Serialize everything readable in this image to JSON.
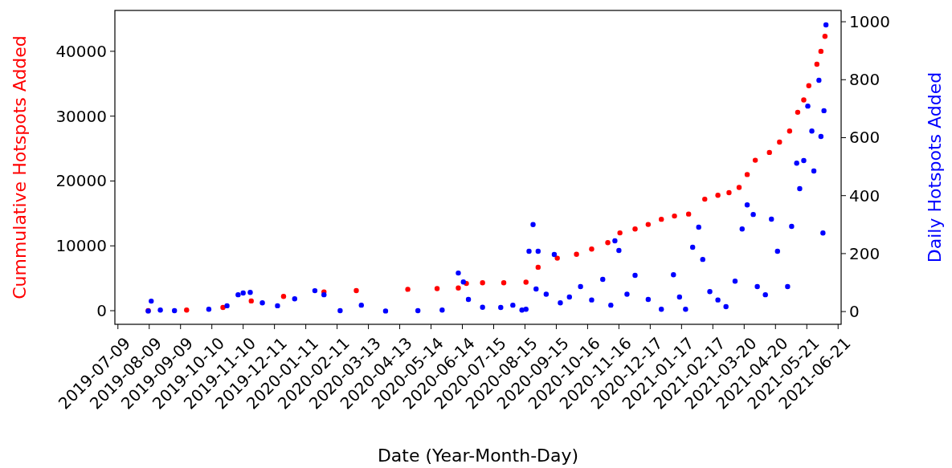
{
  "chart_data": {
    "type": "scatter",
    "xlabel": "Date (Year-Month-Day)",
    "ylabel": "Cummulative Hotspots Added",
    "y2label": "Daily Hotspots Added",
    "marker": "circle",
    "xlim": [
      "2019-07-06",
      "2021-06-24"
    ],
    "xticks": [
      "2019-07-09",
      "2019-08-09",
      "2019-09-09",
      "2019-10-10",
      "2019-11-10",
      "2019-12-11",
      "2020-01-11",
      "2020-02-11",
      "2020-03-13",
      "2020-04-13",
      "2020-05-14",
      "2020-06-14",
      "2020-07-15",
      "2020-08-15",
      "2020-09-15",
      "2020-10-16",
      "2020-11-16",
      "2020-12-17",
      "2021-01-17",
      "2021-02-17",
      "2021-03-20",
      "2021-04-20",
      "2021-05-21",
      "2021-06-21"
    ],
    "ylim": [
      -2100,
      46300
    ],
    "yticks": [
      0,
      10000,
      20000,
      30000,
      40000
    ],
    "y2lim": [
      -44,
      1039
    ],
    "y2ticks": [
      0,
      200,
      400,
      600,
      800,
      1000
    ],
    "series": [
      {
        "color": "#ff0000",
        "x": [
          "2019-08-08",
          "2019-09-15",
          "2019-10-21",
          "2019-11-18",
          "2019-12-20",
          "2020-01-29",
          "2020-03-01",
          "2020-04-21",
          "2020-05-20",
          "2020-06-10",
          "2020-06-18",
          "2020-07-04",
          "2020-07-25",
          "2020-08-16",
          "2020-08-28",
          "2020-09-16",
          "2020-10-05",
          "2020-10-20",
          "2020-11-05",
          "2020-11-17",
          "2020-12-02",
          "2020-12-15",
          "2020-12-28",
          "2021-01-10",
          "2021-01-24",
          "2021-02-09",
          "2021-02-22",
          "2021-03-05",
          "2021-03-15",
          "2021-03-23",
          "2021-03-31",
          "2021-04-14",
          "2021-04-24",
          "2021-05-04",
          "2021-05-12",
          "2021-05-18",
          "2021-05-23",
          "2021-05-31",
          "2021-06-04",
          "2021-06-08"
        ],
        "values": [
          0,
          100,
          500,
          1500,
          2200,
          2900,
          3100,
          3300,
          3400,
          3500,
          4200,
          4300,
          4300,
          4400,
          6700,
          8100,
          8700,
          9500,
          10500,
          12000,
          12600,
          13300,
          14100,
          14600,
          14900,
          17200,
          17800,
          18200,
          19000,
          21000,
          23200,
          24400,
          26000,
          27700,
          30600,
          32500,
          34700,
          38000,
          40000,
          42300
        ]
      },
      {
        "color": "#0000ff",
        "axis": "y2",
        "x": [
          "2019-08-08",
          "2019-08-11",
          "2019-08-20",
          "2019-09-03",
          "2019-10-07",
          "2019-10-25",
          "2019-11-05",
          "2019-11-10",
          "2019-11-17",
          "2019-11-29",
          "2019-12-14",
          "2019-12-31",
          "2020-01-20",
          "2020-01-29",
          "2020-02-14",
          "2020-03-06",
          "2020-03-30",
          "2020-05-01",
          "2020-05-25",
          "2020-06-10",
          "2020-06-15",
          "2020-06-20",
          "2020-07-04",
          "2020-07-22",
          "2020-08-03",
          "2020-08-12",
          "2020-08-16",
          "2020-08-19",
          "2020-08-23",
          "2020-08-26",
          "2020-08-28",
          "2020-09-05",
          "2020-09-13",
          "2020-09-19",
          "2020-09-28",
          "2020-10-09",
          "2020-10-20",
          "2020-10-31",
          "2020-11-08",
          "2020-11-12",
          "2020-11-16",
          "2020-11-24",
          "2020-12-02",
          "2020-12-15",
          "2020-12-28",
          "2021-01-09",
          "2021-01-15",
          "2021-01-21",
          "2021-01-28",
          "2021-02-03",
          "2021-02-07",
          "2021-02-14",
          "2021-02-22",
          "2021-03-02",
          "2021-03-11",
          "2021-03-18",
          "2021-03-23",
          "2021-03-29",
          "2021-04-02",
          "2021-04-10",
          "2021-04-16",
          "2021-04-22",
          "2021-05-02",
          "2021-05-06",
          "2021-05-11",
          "2021-05-14",
          "2021-05-18",
          "2021-05-22",
          "2021-05-26",
          "2021-05-28",
          "2021-06-02",
          "2021-06-04",
          "2021-06-06",
          "2021-06-07",
          "2021-06-09"
        ],
        "values": [
          2,
          36,
          5,
          3,
          8,
          20,
          58,
          64,
          66,
          30,
          20,
          44,
          72,
          58,
          3,
          22,
          2,
          3,
          5,
          133,
          102,
          42,
          15,
          14,
          22,
          5,
          8,
          208,
          300,
          78,
          208,
          60,
          197,
          30,
          50,
          86,
          40,
          111,
          22,
          244,
          211,
          60,
          125,
          42,
          8,
          127,
          50,
          8,
          222,
          291,
          180,
          69,
          40,
          17,
          105,
          285,
          368,
          335,
          86,
          58,
          319,
          208,
          86,
          294,
          512,
          424,
          521,
          709,
          623,
          485,
          798,
          604,
          271,
          693,
          989
        ]
      }
    ]
  }
}
